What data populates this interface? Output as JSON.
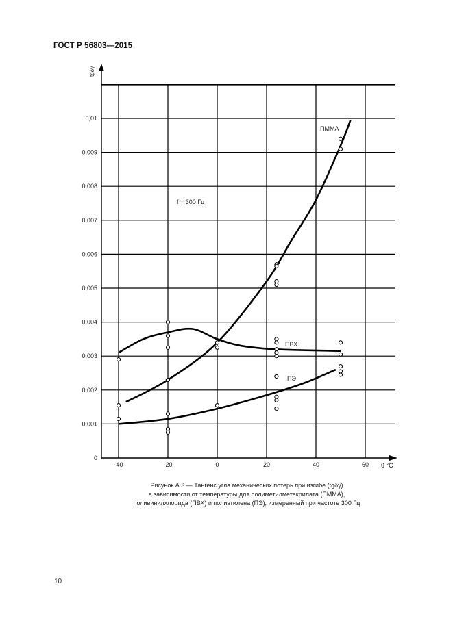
{
  "header": {
    "title": "ГОСТ Р 56803—2015"
  },
  "page_number": "10",
  "caption": {
    "line1": "Рисунок А.3 — Тангенс угла механических потерь при изгибе (tgδγ)",
    "line2": "в зависимости от температуры для полиметилметакрилата (ПММА),",
    "line3": "поливинилхлорида (ПВХ) и полиэтилена (ПЭ), измеренный при частоте 300 Гц"
  },
  "chart_data": {
    "type": "scatter",
    "title": "",
    "xlabel": "θ °C",
    "ylabel": "tgδγ",
    "xlim": [
      -47,
      72
    ],
    "ylim": [
      0,
      0.011
    ],
    "grid": true,
    "x_ticks": [
      "-40",
      "-20",
      "0",
      "20",
      "40",
      "60"
    ],
    "y_ticks": [
      "0",
      "0,001",
      "0,002",
      "0,003",
      "0,004",
      "0,005",
      "0,006",
      "0,007",
      "0,008",
      "0,009",
      "0,01"
    ],
    "annotation": "f = 300 Гц",
    "series": [
      {
        "name": "ПММА",
        "curve": [
          [
            -37,
            0.00165
          ],
          [
            -20,
            0.0023
          ],
          [
            0,
            0.0034
          ],
          [
            20,
            0.0052
          ],
          [
            30,
            0.0064
          ],
          [
            40,
            0.0076
          ],
          [
            50,
            0.0092
          ],
          [
            54,
            0.00995
          ]
        ],
        "points": [
          [
            -20,
            0.0023
          ],
          [
            0,
            0.0034
          ],
          [
            24,
            0.0057
          ],
          [
            24,
            0.00565
          ],
          [
            24,
            0.0052
          ],
          [
            24,
            0.0051
          ],
          [
            50,
            0.0094
          ],
          [
            50,
            0.0091
          ]
        ]
      },
      {
        "name": "ПВХ",
        "curve": [
          [
            -40,
            0.0031
          ],
          [
            -30,
            0.0035
          ],
          [
            -20,
            0.0037
          ],
          [
            -10,
            0.0038
          ],
          [
            0,
            0.0035
          ],
          [
            10,
            0.0033
          ],
          [
            24,
            0.0032
          ],
          [
            50,
            0.00315
          ]
        ],
        "points": [
          [
            -40,
            0.0029
          ],
          [
            -20,
            0.004
          ],
          [
            -20,
            0.0036
          ],
          [
            -20,
            0.00325
          ],
          [
            0,
            0.00325
          ],
          [
            24,
            0.0035
          ],
          [
            24,
            0.0034
          ],
          [
            24,
            0.0032
          ],
          [
            24,
            0.0031
          ],
          [
            24,
            0.003
          ],
          [
            50,
            0.0034
          ],
          [
            50,
            0.00305
          ]
        ]
      },
      {
        "name": "ПЭ",
        "curve": [
          [
            -40,
            0.001
          ],
          [
            -20,
            0.00115
          ],
          [
            0,
            0.00145
          ],
          [
            20,
            0.00185
          ],
          [
            35,
            0.0022
          ],
          [
            48,
            0.0026
          ]
        ],
        "points": [
          [
            -40,
            0.00155
          ],
          [
            -40,
            0.00115
          ],
          [
            -20,
            0.0013
          ],
          [
            -20,
            0.00085
          ],
          [
            -20,
            0.00075
          ],
          [
            0,
            0.00155
          ],
          [
            24,
            0.0024
          ],
          [
            24,
            0.0018
          ],
          [
            24,
            0.0017
          ],
          [
            24,
            0.00145
          ],
          [
            50,
            0.0027
          ],
          [
            50,
            0.00255
          ],
          [
            50,
            0.00245
          ]
        ]
      }
    ]
  }
}
